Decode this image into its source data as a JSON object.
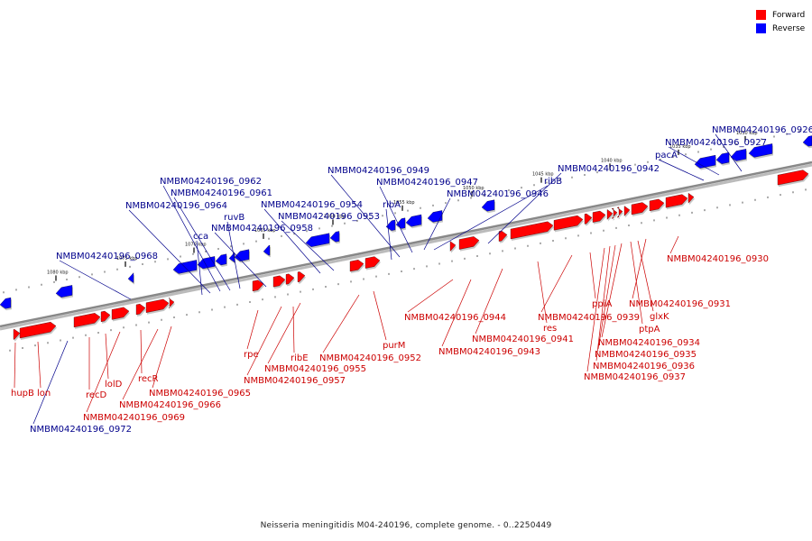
{
  "title": "Neisseria meningitidis M04-240196, complete genome. - 0..2250449",
  "legend": [
    {
      "label": "Forward",
      "color": "#ff0000"
    },
    {
      "label": "Reverse",
      "color": "#0000ff"
    }
  ],
  "colors": {
    "forward": "#ff0000",
    "forward_label": "#cc0000",
    "reverse": "#0000ff",
    "reverse_label": "#00008b",
    "backbone": "#888888"
  },
  "kbp_ticks": [
    "1030 kbp",
    "1035 kbp",
    "1040 kbp",
    "1045 kbp",
    "1050 kbp",
    "1055 kbp",
    "1060 kbp",
    "1065 kbp",
    "1070 kbp",
    "1075 kbp",
    "1080 kbp",
    "1085 kbp"
  ],
  "reverse_genes": [
    "NMBM04240196_0926",
    "NMBM04240196_0927",
    "pacA",
    "NMBM04240196_0942",
    "ribB",
    "NMBM04240196_0946",
    "NMBM04240196_0947",
    "NMBM04240196_0949",
    "ribA",
    "NMBM04240196_0953",
    "NMBM04240196_0954",
    "NMBM04240196_0958",
    "ruvB",
    "NMBM04240196_0961",
    "NMBM04240196_0962",
    "NMBM04240196_0964",
    "cca",
    "NMBM04240196_0968",
    "NMBM04240196_0972"
  ],
  "forward_genes": [
    "NMBM04240196_0930",
    "NMBM04240196_0931",
    "glxK",
    "ptpA",
    "NMBM04240196_0934",
    "NMBM04240196_0935",
    "NMBM04240196_0936",
    "NMBM04240196_0937",
    "ppiA",
    "NMBM04240196_0939",
    "res",
    "NMBM04240196_0941",
    "NMBM04240196_0943",
    "NMBM04240196_0944",
    "purM",
    "NMBM04240196_0952",
    "NMBM04240196_0955",
    "ribE",
    "NMBM04240196_0957",
    "rpe",
    "NMBM04240196_0965",
    "NMBM04240196_0966",
    "recR",
    "NMBM04240196_0969",
    "lolD",
    "recD",
    "lon",
    "hupB"
  ]
}
